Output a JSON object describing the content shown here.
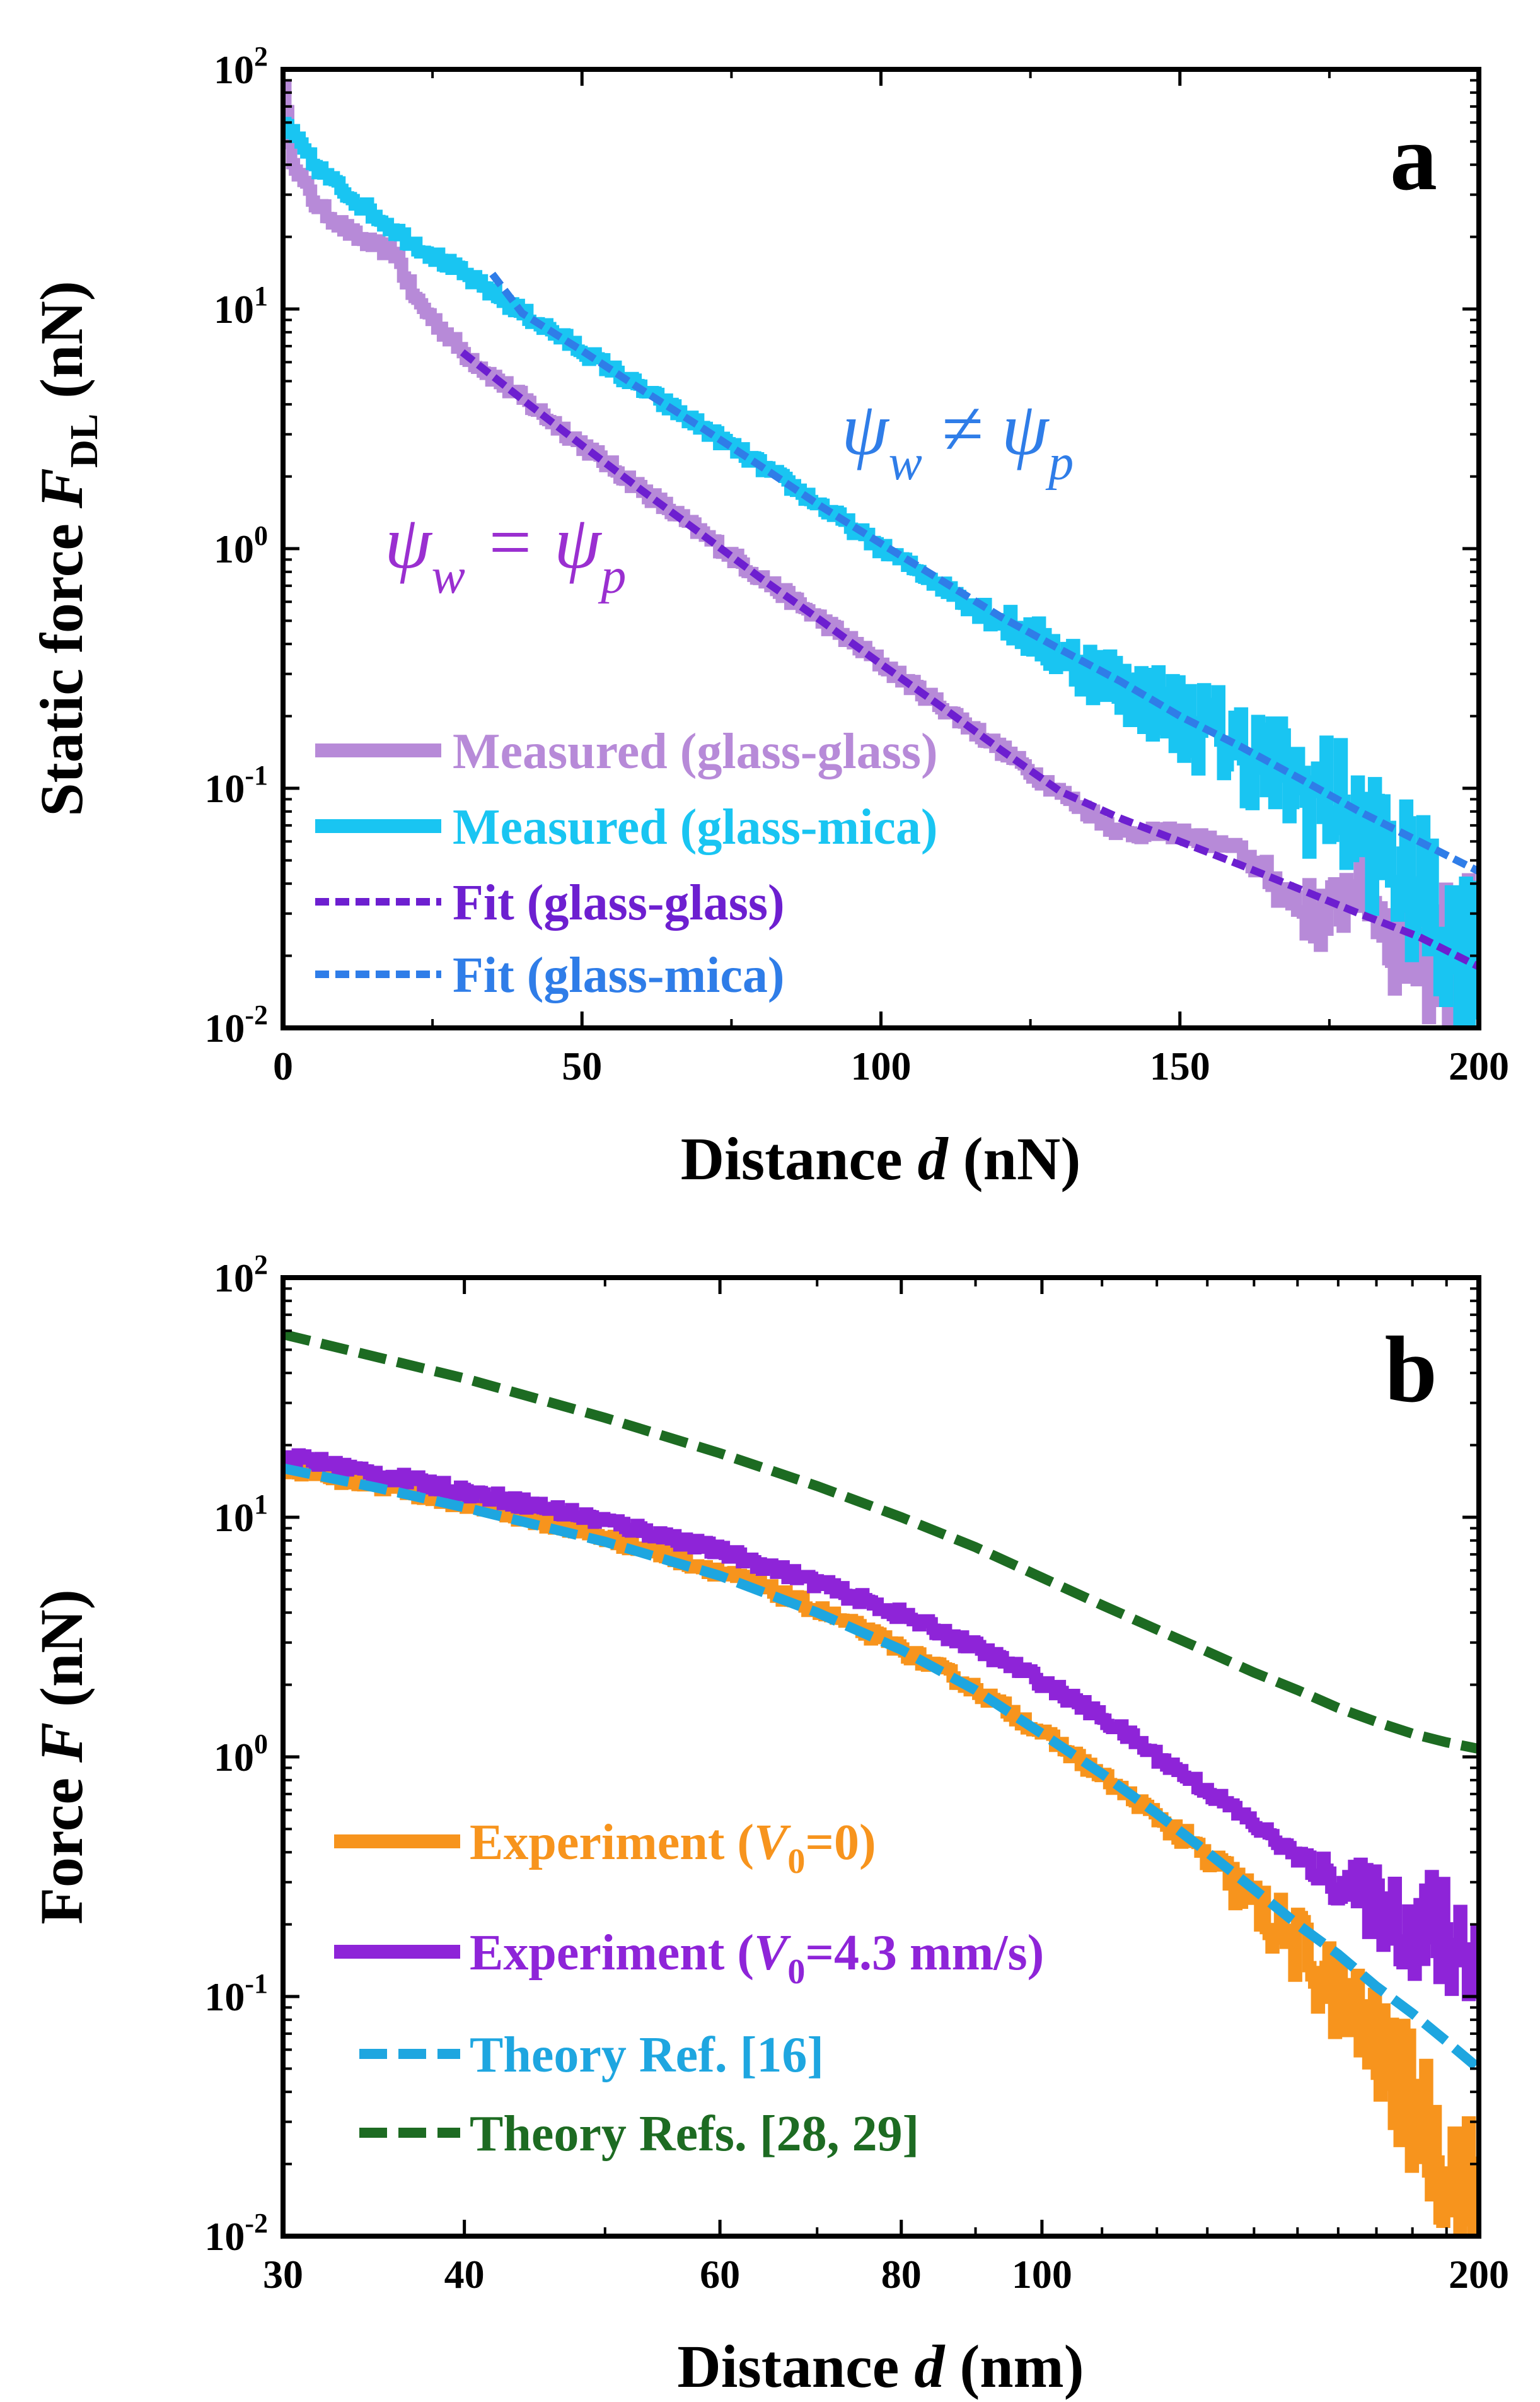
{
  "chart_data": [
    {
      "type": "line",
      "panel_label": "a",
      "xscale": "linear",
      "yscale": "log",
      "xlim": [
        0,
        200
      ],
      "ylim": [
        0.01,
        100
      ],
      "xticks": [
        0,
        50,
        100,
        150,
        200
      ],
      "xtick_labels": [
        "0",
        "50",
        "100",
        "150",
        "200"
      ],
      "yticks": [
        0.01,
        0.1,
        1,
        10,
        100
      ],
      "ytick_labels": [
        {
          "base": "10",
          "exp": "-2"
        },
        {
          "base": "10",
          "exp": "-1"
        },
        {
          "base": "10",
          "exp": "0"
        },
        {
          "base": "10",
          "exp": "1"
        },
        {
          "base": "10",
          "exp": "2"
        }
      ],
      "xlabel": {
        "pre": "Distance ",
        "var": "d",
        "post": " (nN)"
      },
      "ylabel": {
        "pre": "Static force ",
        "var": "F",
        "sub": "DL",
        "post": " (nN)"
      },
      "annotations": [
        {
          "text": "ψw = ψp",
          "at": [
            30,
            1.0
          ],
          "color": "#9a2fd0"
        },
        {
          "text": "ψw ≠ ψp",
          "at": [
            90,
            2.5
          ],
          "color": "#2f7de8"
        }
      ],
      "series": [
        {
          "name": "Measured (glass-glass)",
          "style": "measured",
          "color": "#b78ad8",
          "x": [
            0,
            1,
            3,
            5,
            8,
            12,
            16,
            19,
            20,
            22,
            25,
            30,
            35,
            40,
            50,
            60,
            70,
            80,
            90,
            100,
            110,
            120,
            130,
            140,
            150,
            160,
            170,
            175,
            180,
            185,
            190,
            195,
            200
          ],
          "y": [
            90,
            45,
            35,
            28,
            24,
            20,
            18,
            17,
            14,
            11,
            9,
            6.6,
            5.2,
            4.2,
            2.7,
            1.75,
            1.15,
            0.75,
            0.5,
            0.33,
            0.22,
            0.145,
            0.095,
            0.065,
            0.065,
            0.055,
            0.032,
            0.028,
            0.05,
            0.025,
            0.022,
            0.02,
            0.018
          ],
          "noise_from": 160
        },
        {
          "name": "Measured (glass-mica)",
          "style": "measured",
          "color": "#19c5f2",
          "x": [
            0,
            5,
            10,
            20,
            30,
            40,
            50,
            60,
            70,
            80,
            90,
            100,
            110,
            120,
            130,
            140,
            150,
            160,
            170,
            175,
            180,
            185,
            190,
            195,
            200
          ],
          "y": [
            60,
            40,
            31,
            20,
            14,
            9.6,
            6.7,
            4.6,
            3.2,
            2.2,
            1.5,
            1.0,
            0.7,
            0.5,
            0.36,
            0.27,
            0.2,
            0.15,
            0.1,
            0.09,
            0.07,
            0.05,
            0.035,
            0.025,
            0.02
          ],
          "noise_from": 110
        },
        {
          "name": "Fit (glass-glass)",
          "style": "fit",
          "color": "#6d1fd0",
          "x": [
            30,
            40,
            50,
            60,
            70,
            80,
            90,
            100,
            110,
            120,
            130,
            140,
            150,
            160,
            170,
            180,
            190,
            200
          ],
          "y": [
            6.6,
            4.2,
            2.7,
            1.75,
            1.15,
            0.75,
            0.5,
            0.33,
            0.22,
            0.145,
            0.097,
            0.075,
            0.06,
            0.048,
            0.038,
            0.03,
            0.024,
            0.018
          ]
        },
        {
          "name": "Fit (glass-mica)",
          "style": "fit",
          "color": "#2f7de8",
          "x": [
            35,
            40,
            50,
            60,
            70,
            80,
            90,
            100,
            110,
            120,
            130,
            140,
            150,
            160,
            170,
            180,
            190,
            200
          ],
          "y": [
            14,
            9.6,
            6.7,
            4.6,
            3.2,
            2.2,
            1.5,
            1.05,
            0.74,
            0.52,
            0.38,
            0.28,
            0.2,
            0.15,
            0.11,
            0.08,
            0.06,
            0.045
          ]
        }
      ]
    },
    {
      "type": "line",
      "panel_label": "b",
      "xscale": "log",
      "yscale": "log",
      "xlim": [
        30,
        200
      ],
      "ylim": [
        0.01,
        100
      ],
      "xticks": [
        30,
        40,
        60,
        80,
        100,
        200
      ],
      "xtick_labels": [
        "30",
        "40",
        "60",
        "80",
        "100",
        "200"
      ],
      "yticks": [
        0.01,
        0.1,
        1,
        10,
        100
      ],
      "ytick_labels": [
        {
          "base": "10",
          "exp": "-2"
        },
        {
          "base": "10",
          "exp": "-1"
        },
        {
          "base": "10",
          "exp": "0"
        },
        {
          "base": "10",
          "exp": "1"
        },
        {
          "base": "10",
          "exp": "2"
        }
      ],
      "xlabel": {
        "pre": "Distance ",
        "var": "d",
        "post": " (nm)"
      },
      "ylabel": {
        "pre": "Force ",
        "var": "F",
        "post": " (nN)"
      },
      "series": [
        {
          "name": "Experiment (V0=0)",
          "style": "measured",
          "color": "#f7941d",
          "x": [
            30,
            35,
            40,
            50,
            60,
            70,
            80,
            90,
            100,
            110,
            120,
            130,
            140,
            150,
            160,
            170,
            180,
            190,
            200
          ],
          "y": [
            16,
            13.5,
            11.4,
            8.2,
            5.9,
            4.1,
            2.8,
            1.9,
            1.25,
            0.82,
            0.56,
            0.37,
            0.24,
            0.16,
            0.1,
            0.06,
            0.035,
            0.02,
            0.012
          ],
          "noise_from": 120
        },
        {
          "name": "Experiment (V0=4.3 mm/s)",
          "style": "measured",
          "color": "#8e24d8",
          "x": [
            30,
            35,
            40,
            50,
            60,
            70,
            80,
            90,
            100,
            110,
            120,
            130,
            140,
            150,
            160,
            170,
            180,
            190,
            200
          ],
          "y": [
            18,
            15,
            12.8,
            9.6,
            7.2,
            5.3,
            3.9,
            2.85,
            2.05,
            1.45,
            1.0,
            0.72,
            0.52,
            0.38,
            0.3,
            0.24,
            0.2,
            0.17,
            0.16
          ],
          "noise_from": 150
        },
        {
          "name": "Theory Ref. [16]",
          "style": "fit",
          "color": "#1ea6e0",
          "x": [
            30,
            35,
            40,
            50,
            60,
            70,
            80,
            90,
            100,
            110,
            120,
            130,
            140,
            150,
            160,
            170,
            180,
            190,
            200
          ],
          "y": [
            16,
            13.2,
            11,
            7.9,
            5.7,
            4.0,
            2.8,
            1.9,
            1.25,
            0.85,
            0.58,
            0.4,
            0.28,
            0.2,
            0.15,
            0.11,
            0.085,
            0.065,
            0.05
          ]
        },
        {
          "name": "Theory Refs. [28, 29]",
          "style": "fit",
          "color": "#1d6b22",
          "x": [
            30,
            40,
            50,
            60,
            70,
            80,
            90,
            100,
            110,
            120,
            130,
            140,
            150,
            160,
            170,
            180,
            190,
            200
          ],
          "y": [
            58,
            38,
            26,
            18.5,
            13.5,
            10,
            7.5,
            5.6,
            4.3,
            3.4,
            2.75,
            2.25,
            1.9,
            1.6,
            1.4,
            1.25,
            1.15,
            1.08
          ]
        }
      ]
    }
  ]
}
